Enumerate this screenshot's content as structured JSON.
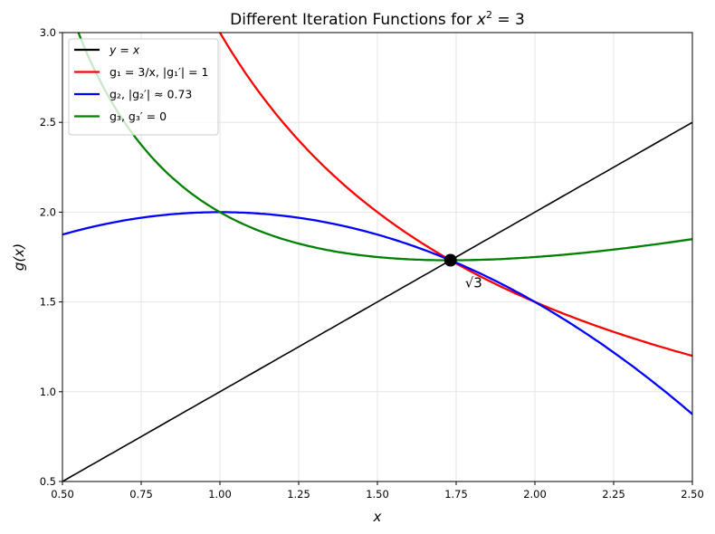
{
  "chart_data": {
    "type": "line",
    "title": "Different Iteration Functions for x² = 3",
    "xlabel": "x",
    "ylabel": "g(x)",
    "xlim": [
      0.5,
      2.5
    ],
    "ylim": [
      0.5,
      3.0
    ],
    "xticks": [
      "0.50",
      "0.75",
      "1.00",
      "1.25",
      "1.50",
      "1.75",
      "2.00",
      "2.25",
      "2.50"
    ],
    "yticks": [
      "0.5",
      "1.0",
      "1.5",
      "2.0",
      "2.5",
      "3.0"
    ],
    "grid": true,
    "legend_position": "upper left",
    "series": [
      {
        "name": "y = x",
        "color": "#000000",
        "formula": "x",
        "x": [
          0.5,
          1.0,
          1.5,
          2.0,
          2.5
        ],
        "values": [
          0.5,
          1.0,
          1.5,
          2.0,
          2.5
        ]
      },
      {
        "name": "g1 = 3/x, |g1'| = 1",
        "color": "#ff0000",
        "formula": "3/x",
        "x": [
          1.0,
          1.25,
          1.5,
          1.75,
          2.0,
          2.25,
          2.5
        ],
        "values": [
          3.0,
          2.4,
          2.0,
          1.714,
          1.5,
          1.333,
          1.2
        ]
      },
      {
        "name": "g2, |g2'| ≈ 0.73",
        "color": "#0000ff",
        "formula": "x-(x^2-3)/2",
        "x": [
          0.5,
          0.75,
          1.0,
          1.25,
          1.5,
          1.75,
          2.0,
          2.25,
          2.5
        ],
        "values": [
          1.875,
          1.969,
          2.0,
          1.969,
          1.875,
          1.719,
          1.5,
          1.219,
          0.875
        ]
      },
      {
        "name": "g3, g3' = 0",
        "color": "#008000",
        "formula": "(x+3/x)/2",
        "x": [
          0.5,
          0.75,
          1.0,
          1.25,
          1.5,
          1.75,
          2.0,
          2.25,
          2.5
        ],
        "values": [
          3.25,
          2.375,
          2.0,
          1.825,
          1.75,
          1.732,
          1.75,
          1.792,
          1.85
        ]
      }
    ],
    "annotations": [
      {
        "text": "√3",
        "x": 1.732,
        "y": 1.732,
        "marker": "filled black circle"
      }
    ]
  },
  "legend": {
    "items": [
      "y = x",
      "g₁ = 3/x, |g₁′| = 1",
      "g₂, |g₂′| ≈ 0.73",
      "g₃, g₃′ = 0"
    ]
  },
  "labels": {
    "title": "Different Iteration Functions for x² = 3",
    "x": "x",
    "y": "g(x)",
    "fixed_point": "√3"
  }
}
